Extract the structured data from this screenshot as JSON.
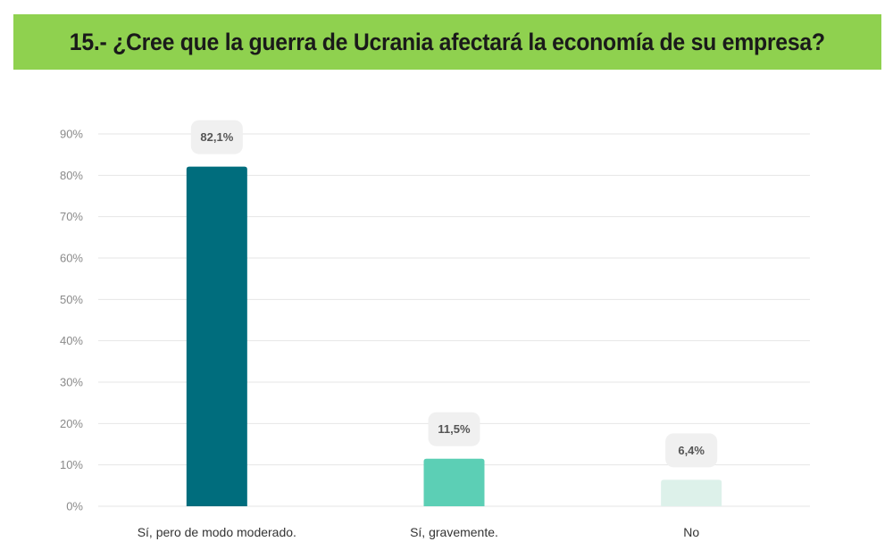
{
  "header": {
    "title": "15.- ¿Cree que la guerra de Ucrania afectará la economía de su empresa?"
  },
  "colors": {
    "banner": "#8fd14f",
    "bars": [
      "#006d7d",
      "#5ccfb5",
      "#ddf1ea"
    ],
    "grid": "#e6e6e6",
    "label_bubble": "#f0f0f0"
  },
  "chart_data": {
    "type": "bar",
    "categories": [
      "Sí, pero de modo moderado.",
      "Sí, gravemente.",
      "No"
    ],
    "values": [
      82.1,
      11.5,
      6.4
    ],
    "data_labels": [
      "82,1%",
      "11,5%",
      "6,4%"
    ],
    "title": "",
    "xlabel": "",
    "ylabel": "",
    "ylim": [
      0,
      90
    ],
    "yticks": [
      0,
      10,
      20,
      30,
      40,
      50,
      60,
      70,
      80,
      90
    ],
    "ytick_labels": [
      "0%",
      "10%",
      "20%",
      "30%",
      "40%",
      "50%",
      "60%",
      "70%",
      "80%",
      "90%"
    ],
    "grid": true,
    "legend": "none"
  }
}
